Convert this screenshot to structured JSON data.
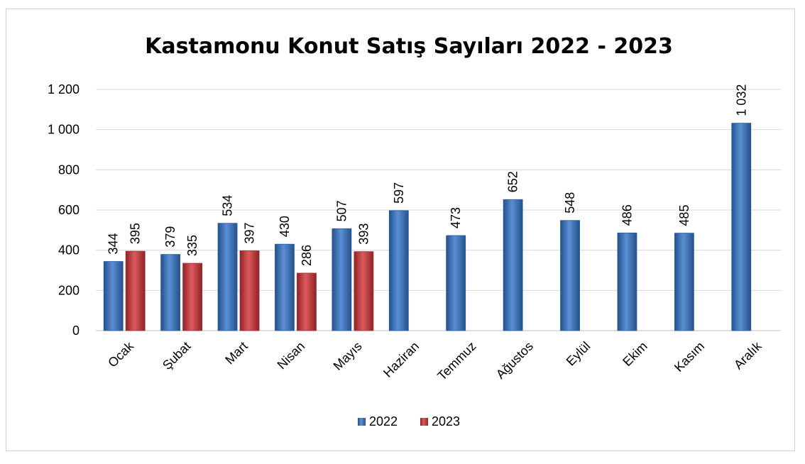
{
  "chart_data": {
    "type": "bar",
    "title": "Kastamonu Konut Satış Sayıları 2022 - 2023",
    "categories": [
      "Ocak",
      "Şubat",
      "Mart",
      "Nisan",
      "Mayıs",
      "Haziran",
      "Temmuz",
      "Ağustos",
      "Eylül",
      "Ekim",
      "Kasım",
      "Aralık"
    ],
    "series": [
      {
        "name": "2022",
        "color": "#3a6fb5",
        "values": [
          344,
          379,
          534,
          430,
          507,
          597,
          473,
          652,
          548,
          486,
          485,
          1032
        ],
        "labels": [
          "344",
          "379",
          "534",
          "430",
          "507",
          "597",
          "473",
          "652",
          "548",
          "486",
          "485",
          "1 032"
        ]
      },
      {
        "name": "2023",
        "color": "#c0393b",
        "values": [
          395,
          335,
          397,
          286,
          393,
          null,
          null,
          null,
          null,
          null,
          null,
          null
        ],
        "labels": [
          "395",
          "335",
          "397",
          "286",
          "393",
          "",
          "",
          "",
          "",
          "",
          "",
          ""
        ]
      }
    ],
    "yticks": [
      0,
      200,
      400,
      600,
      800,
      1000,
      1200
    ],
    "ytick_labels": [
      "0",
      "200",
      "400",
      "600",
      "800",
      "1 000",
      "1 200"
    ],
    "ylim": [
      0,
      1200
    ],
    "grid": true,
    "legend_position": "bottom"
  }
}
